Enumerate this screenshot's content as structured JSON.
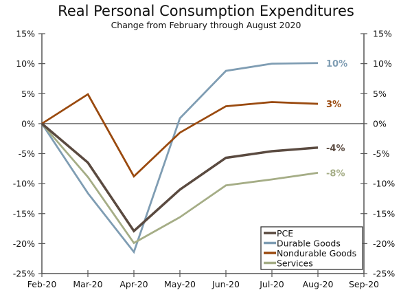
{
  "chart_data": {
    "type": "line",
    "title": "Real Personal Consumption Expenditures",
    "subtitle": "Change from February through August 2020",
    "xlabel": "",
    "ylabel": "",
    "categories": [
      "Feb-20",
      "Mar-20",
      "Apr-20",
      "May-20",
      "Jun-20",
      "Jul-20",
      "Aug-20",
      "Sep-20"
    ],
    "ylim": [
      -25,
      15
    ],
    "y_ticks": [
      15,
      10,
      5,
      0,
      -5,
      -10,
      -15,
      -20,
      -25
    ],
    "y_tick_labels": [
      "15%",
      "10%",
      "5%",
      "0%",
      "-5%",
      "-10%",
      "-15%",
      "-20%",
      "-25%"
    ],
    "y_axis_right": true,
    "grid": false,
    "zero_line": true,
    "legend_position": "bottom-right",
    "series": [
      {
        "name": "PCE",
        "color": "#5a4a40",
        "values": [
          0,
          -6.5,
          -17.9,
          -11.0,
          -5.7,
          -4.6,
          -4.0
        ],
        "end_label": "-4%"
      },
      {
        "name": "Durable Goods",
        "color": "#7f9db3",
        "values": [
          0,
          -11.6,
          -21.4,
          0.9,
          8.8,
          10.0,
          10.1
        ],
        "end_label": "10%"
      },
      {
        "name": "Nondurable Goods",
        "color": "#9a4a0f",
        "values": [
          0,
          4.9,
          -8.8,
          -1.5,
          2.9,
          3.6,
          3.3
        ],
        "end_label": "3%"
      },
      {
        "name": "Services",
        "color": "#a5ad86",
        "values": [
          0,
          -8.9,
          -19.9,
          -15.6,
          -10.3,
          -9.3,
          -8.2
        ],
        "end_label": "-8%"
      }
    ]
  }
}
